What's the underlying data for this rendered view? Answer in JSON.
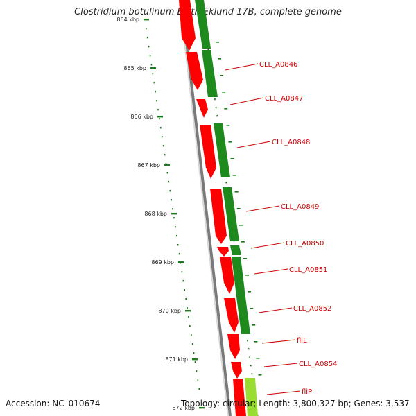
{
  "title": "Clostridium botulinum B str. Eklund 17B, complete genome",
  "accession": "Accession: NC_010674",
  "topology": "Topology: circular; Length: 3,800,327 bp; Genes: 3,537",
  "colors": {
    "forward_cds": "#ff0000",
    "reverse_cds": "#1e8a1e",
    "tick": "#1a7a1a",
    "backbone": "#7a7a7a",
    "label": "#cc0000",
    "light_gene": "#99dd33"
  },
  "ticks": [
    {
      "kbp": 864,
      "label": "864 kbp"
    },
    {
      "kbp": 865,
      "label": "865 kbp"
    },
    {
      "kbp": 866,
      "label": "866 kbp"
    },
    {
      "kbp": 867,
      "label": "867 kbp"
    },
    {
      "kbp": 868,
      "label": "868 kbp"
    },
    {
      "kbp": 869,
      "label": "869 kbp"
    },
    {
      "kbp": 870,
      "label": "870 kbp"
    },
    {
      "kbp": 871,
      "label": "871 kbp"
    },
    {
      "kbp": 872,
      "label": "872 kbp"
    }
  ],
  "gene_labels": [
    "CLL_A0846",
    "CLL_A0847",
    "CLL_A0848",
    "CLL_A0849",
    "CLL_A0850",
    "CLL_A0851",
    "CLL_A0852",
    "fliL",
    "CLL_A0854",
    "fliP"
  ]
}
